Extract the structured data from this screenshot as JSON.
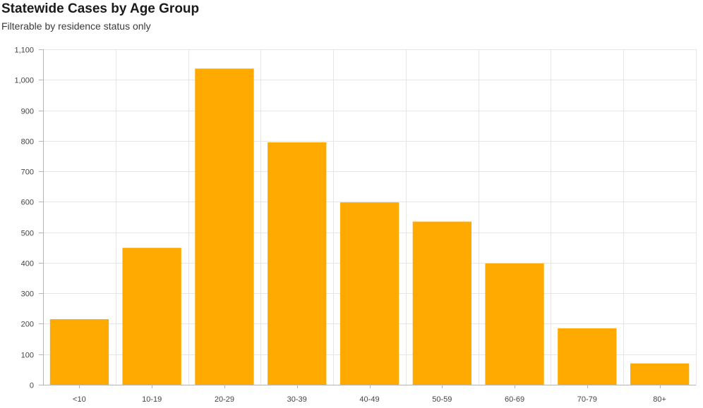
{
  "header": {
    "title": "Statewide Cases by Age Group",
    "subtitle": "Filterable by residence status only"
  },
  "chart_data": {
    "type": "bar",
    "title": "Statewide Cases by Age Group",
    "subtitle": "Filterable by residence status only",
    "xlabel": "",
    "ylabel": "",
    "categories": [
      "<10",
      "10-19",
      "20-29",
      "30-39",
      "40-49",
      "50-59",
      "60-69",
      "70-79",
      "80+"
    ],
    "values": [
      215,
      449,
      1037,
      795,
      598,
      535,
      398,
      185,
      70
    ],
    "ylim": [
      0,
      1100
    ],
    "yticks": [
      0,
      100,
      200,
      300,
      400,
      500,
      600,
      700,
      800,
      900,
      1000,
      1100
    ],
    "ytick_labels": [
      "0",
      "100",
      "200",
      "300",
      "400",
      "500",
      "600",
      "700",
      "800",
      "900",
      "1,000",
      "1,100"
    ],
    "grid": true,
    "bar_color": "#ffaa00"
  }
}
